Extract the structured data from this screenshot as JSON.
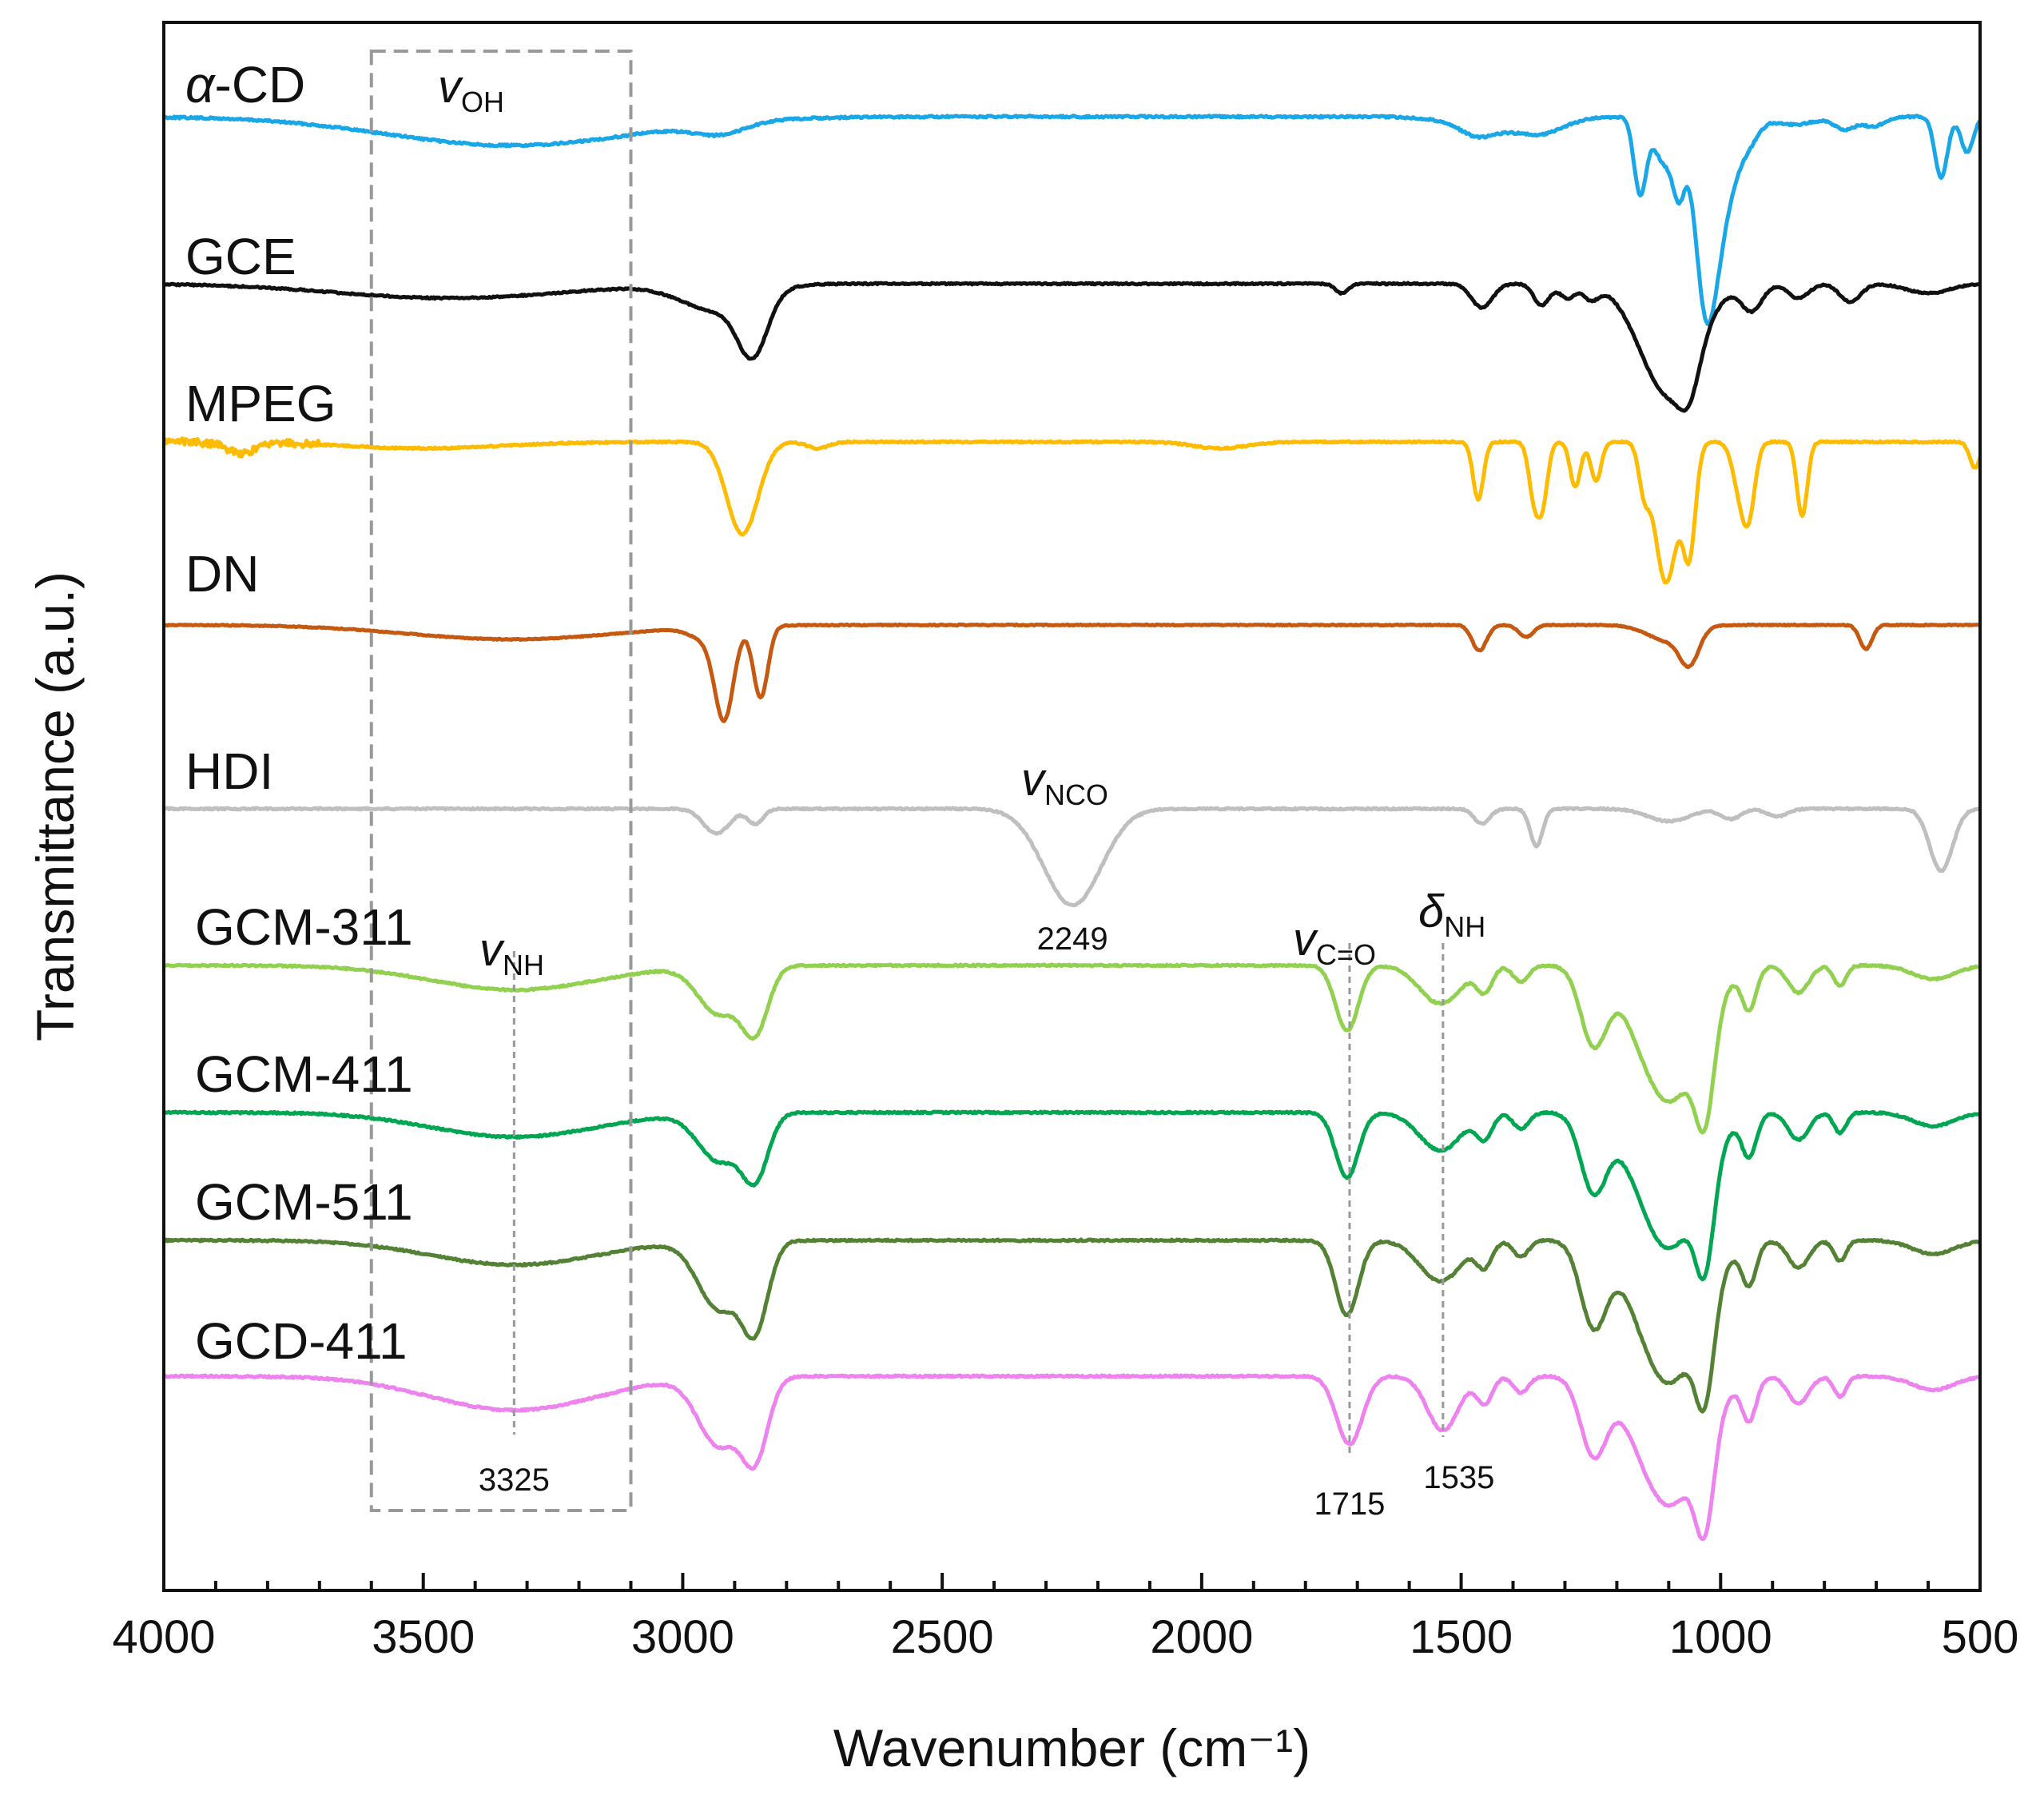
{
  "chart_data": {
    "type": "line",
    "title": "",
    "xlabel": "Wavenumber (cm⁻¹)",
    "ylabel": "Transmittance (a.u.)",
    "xlim": [
      4000,
      500
    ],
    "x_ticks": [
      4000,
      3500,
      3000,
      2500,
      2000,
      1500,
      1000,
      500
    ],
    "x_tick_labels": [
      "4000",
      "3500",
      "3000",
      "2500",
      "2000",
      "1500",
      "1000",
      "500"
    ],
    "grid": false,
    "legend": "labels placed above each trace (left side)",
    "series": [
      {
        "name": "α-CD",
        "label_main": "α",
        "label_rest": "-CD",
        "color": "#1aa7e8",
        "baseline": 0,
        "features": [
          [
            3330,
            0.18,
            240
          ],
          [
            2930,
            0.07,
            50
          ],
          [
            1470,
            0.06,
            30
          ],
          [
            1420,
            0.08,
            80
          ],
          [
            1340,
            0.06,
            40
          ],
          [
            1155,
            0.48,
            12
          ],
          [
            1110,
            0.28,
            18
          ],
          [
            1080,
            0.42,
            12
          ],
          [
            1030,
            0.92,
            20
          ],
          [
            1000,
            0.6,
            28
          ],
          [
            945,
            0.12,
            20
          ],
          [
            860,
            0.05,
            40
          ],
          [
            760,
            0.08,
            20
          ],
          [
            705,
            0.06,
            20
          ],
          [
            575,
            0.38,
            12
          ],
          [
            525,
            0.22,
            12
          ]
        ]
      },
      {
        "name": "GCE",
        "label_main": "GCE",
        "label_rest": "",
        "color": "#111111",
        "baseline": 0,
        "features": [
          [
            3450,
            0.12,
            220
          ],
          [
            2930,
            0.22,
            70
          ],
          [
            2865,
            0.48,
            28
          ],
          [
            1730,
            0.08,
            12
          ],
          [
            1460,
            0.2,
            20
          ],
          [
            1345,
            0.18,
            15
          ],
          [
            1295,
            0.12,
            15
          ],
          [
            1250,
            0.12,
            15
          ],
          [
            1100,
            0.92,
            55
          ],
          [
            1060,
            0.3,
            20
          ],
          [
            940,
            0.22,
            20
          ],
          [
            850,
            0.12,
            20
          ],
          [
            750,
            0.15,
            20
          ],
          [
            600,
            0.08,
            40
          ]
        ]
      },
      {
        "name": "MPEG",
        "label_main": "MPEG",
        "label_rest": "",
        "color": "#ffbb00",
        "baseline": 0,
        "features": [
          [
            3850,
            0.08,
            30
          ],
          [
            3500,
            0.05,
            150
          ],
          [
            2885,
            0.72,
            30
          ],
          [
            2740,
            0.05,
            20
          ],
          [
            1965,
            0.05,
            50
          ],
          [
            1467,
            0.45,
            10
          ],
          [
            1360,
            0.4,
            10
          ],
          [
            1343,
            0.45,
            10
          ],
          [
            1280,
            0.35,
            10
          ],
          [
            1240,
            0.3,
            10
          ],
          [
            1148,
            0.3,
            10
          ],
          [
            1105,
            1.1,
            22
          ],
          [
            1060,
            0.8,
            12
          ],
          [
            963,
            0.35,
            14
          ],
          [
            945,
            0.48,
            12
          ],
          [
            843,
            0.58,
            10
          ],
          [
            510,
            0.2,
            10
          ]
        ]
      },
      {
        "name": "DN",
        "label_main": "DN",
        "label_rest": "",
        "color": "#c65911",
        "baseline": 0,
        "features": [
          [
            3330,
            0.18,
            200
          ],
          [
            2955,
            0.15,
            30
          ],
          [
            2920,
            1.1,
            18
          ],
          [
            2850,
            0.9,
            14
          ],
          [
            1465,
            0.32,
            14
          ],
          [
            1375,
            0.15,
            14
          ],
          [
            1100,
            0.2,
            40
          ],
          [
            1060,
            0.4,
            18
          ],
          [
            720,
            0.3,
            12
          ]
        ]
      },
      {
        "name": "HDI",
        "label_main": "HDI",
        "label_rest": "",
        "color": "#bfbfbf",
        "baseline": 0,
        "features": [
          [
            2935,
            0.2,
            25
          ],
          [
            2860,
            0.12,
            15
          ],
          [
            2249,
            0.78,
            55
          ],
          [
            1460,
            0.12,
            15
          ],
          [
            1355,
            0.3,
            12
          ],
          [
            1100,
            0.1,
            40
          ],
          [
            980,
            0.08,
            20
          ],
          [
            890,
            0.06,
            20
          ],
          [
            575,
            0.5,
            22
          ]
        ]
      },
      {
        "name": "GCM-311",
        "label_main": "GCM-311",
        "label_rest": "",
        "color": "#92d050",
        "baseline": 0,
        "features": [
          [
            3325,
            0.18,
            160
          ],
          [
            2930,
            0.35,
            40
          ],
          [
            2860,
            0.45,
            25
          ],
          [
            1720,
            0.48,
            22
          ],
          [
            1540,
            0.28,
            40
          ],
          [
            1455,
            0.18,
            15
          ],
          [
            1385,
            0.12,
            15
          ],
          [
            1245,
            0.55,
            25
          ],
          [
            1100,
            1.0,
            60
          ],
          [
            1030,
            0.7,
            18
          ],
          [
            945,
            0.3,
            14
          ],
          [
            850,
            0.2,
            20
          ],
          [
            770,
            0.15,
            12
          ],
          [
            590,
            0.1,
            40
          ]
        ]
      },
      {
        "name": "GCM-411",
        "label_main": "GCM-411",
        "label_rest": "",
        "color": "#00a651",
        "baseline": 0,
        "features": [
          [
            3325,
            0.18,
            160
          ],
          [
            2930,
            0.35,
            40
          ],
          [
            2860,
            0.45,
            25
          ],
          [
            1720,
            0.48,
            22
          ],
          [
            1540,
            0.28,
            40
          ],
          [
            1455,
            0.18,
            15
          ],
          [
            1385,
            0.12,
            15
          ],
          [
            1245,
            0.55,
            25
          ],
          [
            1100,
            1.0,
            60
          ],
          [
            1030,
            0.7,
            18
          ],
          [
            945,
            0.3,
            14
          ],
          [
            850,
            0.2,
            20
          ],
          [
            770,
            0.15,
            12
          ],
          [
            590,
            0.1,
            40
          ]
        ]
      },
      {
        "name": "GCM-511",
        "label_main": "GCM-511",
        "label_rest": "",
        "color": "#548235",
        "baseline": 0,
        "features": [
          [
            3325,
            0.18,
            160
          ],
          [
            2930,
            0.5,
            40
          ],
          [
            2860,
            0.6,
            25
          ],
          [
            1720,
            0.55,
            22
          ],
          [
            1540,
            0.3,
            40
          ],
          [
            1455,
            0.18,
            15
          ],
          [
            1385,
            0.12,
            15
          ],
          [
            1245,
            0.6,
            25
          ],
          [
            1100,
            1.05,
            60
          ],
          [
            1030,
            0.7,
            18
          ],
          [
            945,
            0.3,
            14
          ],
          [
            850,
            0.2,
            20
          ],
          [
            770,
            0.15,
            12
          ],
          [
            590,
            0.1,
            40
          ]
        ]
      },
      {
        "name": "GCD-411",
        "label_main": "GCD-411",
        "label_rest": "",
        "color": "#ee82ee",
        "baseline": 0,
        "features": [
          [
            3325,
            0.25,
            160
          ],
          [
            2930,
            0.5,
            40
          ],
          [
            2860,
            0.55,
            25
          ],
          [
            1715,
            0.5,
            25
          ],
          [
            1535,
            0.4,
            30
          ],
          [
            1455,
            0.2,
            15
          ],
          [
            1385,
            0.12,
            15
          ],
          [
            1245,
            0.55,
            25
          ],
          [
            1100,
            0.95,
            60
          ],
          [
            1030,
            0.7,
            18
          ],
          [
            945,
            0.3,
            14
          ],
          [
            850,
            0.2,
            20
          ],
          [
            770,
            0.15,
            12
          ],
          [
            590,
            0.1,
            40
          ]
        ]
      }
    ],
    "annotations": {
      "box_OH": {
        "x_from": 3600,
        "x_to": 3100
      },
      "vOH": {
        "sym": "v",
        "sub": "OH",
        "x": 3400
      },
      "vNCO": {
        "sym": "v",
        "sub": "NCO",
        "x": 2249,
        "value": "2249"
      },
      "vNH": {
        "sym": "v",
        "sub": "NH",
        "x": 3325,
        "value": "3325"
      },
      "vCO": {
        "sym": "v",
        "sub": "C=O",
        "x": 1715,
        "value": "1715"
      },
      "dNH": {
        "sym": "δ",
        "sub": "NH",
        "x": 1535,
        "value": "1535"
      }
    }
  }
}
